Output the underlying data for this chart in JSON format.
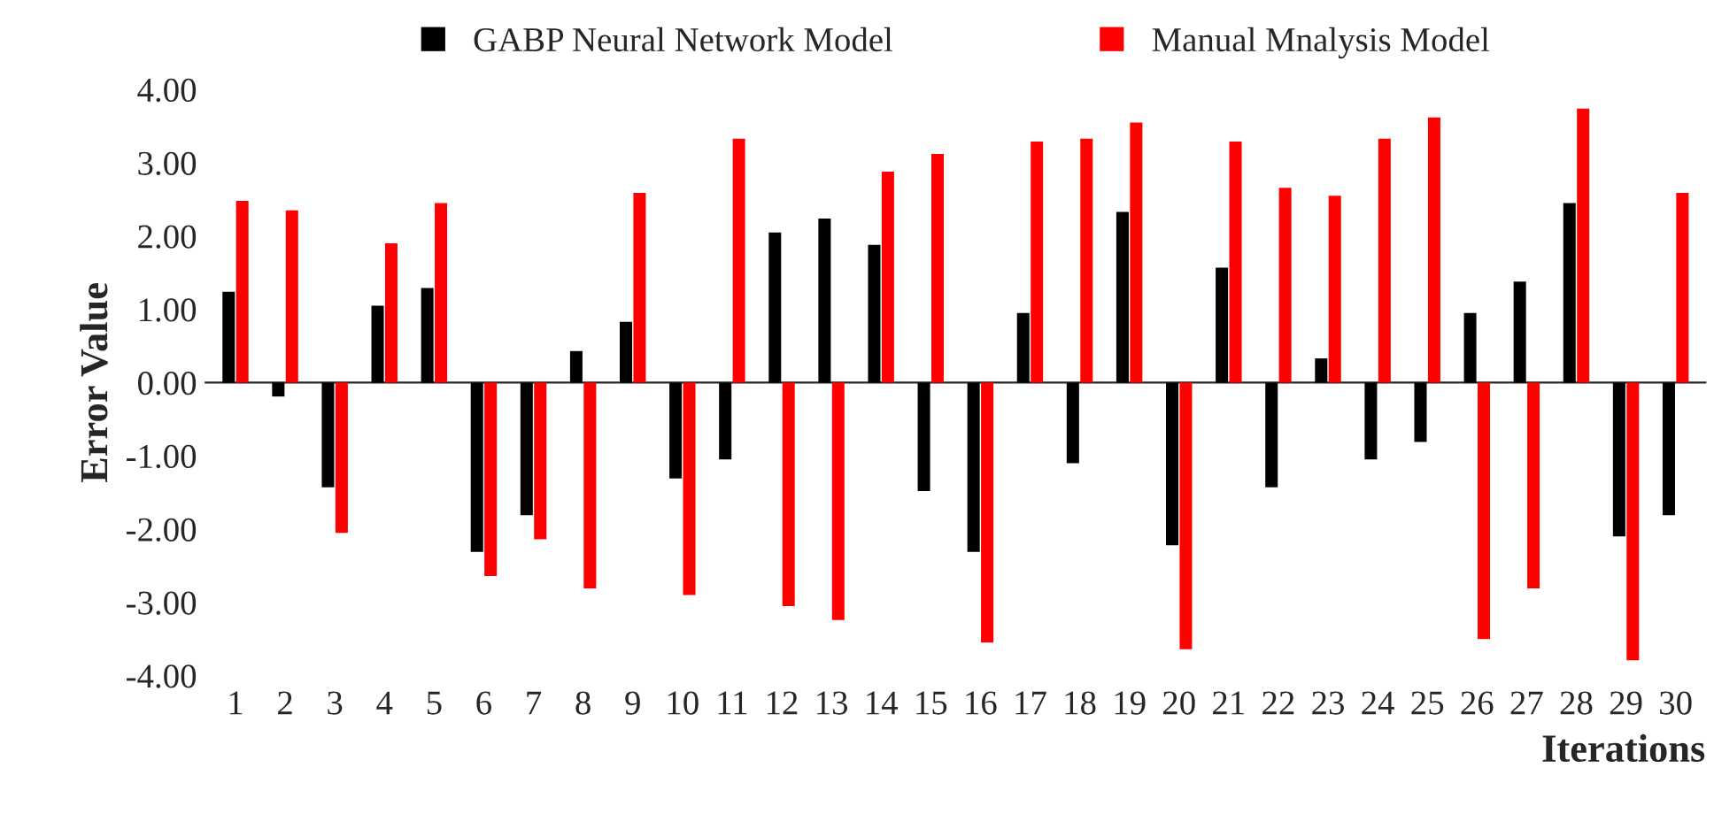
{
  "chart_data": {
    "type": "bar",
    "xlabel": "Iterations",
    "ylabel": "Error Value",
    "categories": [
      "1",
      "2",
      "3",
      "4",
      "5",
      "6",
      "7",
      "8",
      "9",
      "10",
      "11",
      "12",
      "13",
      "14",
      "15",
      "16",
      "17",
      "18",
      "19",
      "20",
      "21",
      "22",
      "23",
      "24",
      "25",
      "26",
      "27",
      "28",
      "29",
      "30"
    ],
    "series": [
      {
        "name": "GABP Neural Network Model",
        "color": "#000000",
        "values": [
          1.24,
          -0.19,
          -1.43,
          1.05,
          1.29,
          -2.31,
          -1.81,
          0.43,
          0.83,
          -1.31,
          -1.05,
          2.05,
          2.24,
          1.88,
          -1.48,
          -2.31,
          0.95,
          -1.1,
          2.33,
          -2.22,
          1.57,
          -1.43,
          0.33,
          -1.05,
          -0.81,
          0.95,
          1.38,
          2.45,
          -2.1,
          -1.81
        ]
      },
      {
        "name": "Manual Mnalysis Model",
        "color": "#ff0000",
        "values": [
          2.48,
          2.35,
          -2.05,
          1.9,
          2.45,
          -2.64,
          -2.14,
          -2.81,
          2.59,
          -2.9,
          3.33,
          -3.05,
          -3.24,
          2.88,
          3.12,
          -3.55,
          3.29,
          3.33,
          3.55,
          -3.64,
          3.29,
          2.66,
          2.55,
          3.33,
          3.62,
          -3.5,
          -2.81,
          3.74,
          -3.79,
          2.59
        ]
      }
    ],
    "ylim": [
      -4.0,
      4.0
    ],
    "yticks": [
      {
        "value": -4,
        "label": "-4.00"
      },
      {
        "value": -3,
        "label": "-3.00"
      },
      {
        "value": -2,
        "label": "-2.00"
      },
      {
        "value": -1,
        "label": "-1.00"
      },
      {
        "value": 0,
        "label": "0.00"
      },
      {
        "value": 1,
        "label": "1.00"
      },
      {
        "value": 2,
        "label": "2.00"
      },
      {
        "value": 3,
        "label": "3.00"
      },
      {
        "value": 4,
        "label": "4.00"
      }
    ],
    "legend": "top"
  }
}
